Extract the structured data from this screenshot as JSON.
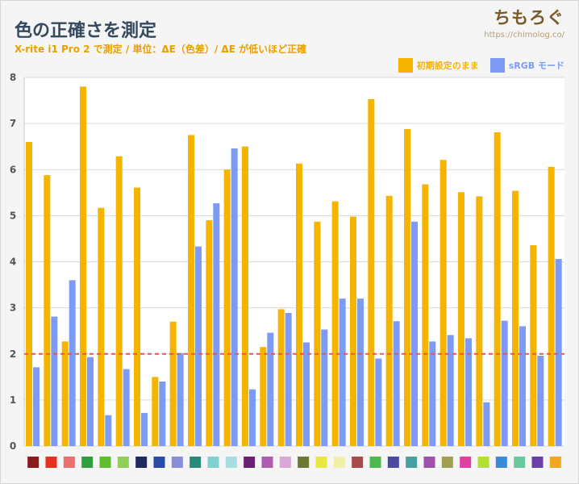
{
  "header": {
    "title": "色の正確さを測定",
    "subtitle": "X-rite i1 Pro 2 で測定 / 単位：ΔE（色差）/ ΔE が低いほど正確"
  },
  "brand": {
    "logo": "ちもろぐ",
    "url": "https://chimolog.co/"
  },
  "colors": {
    "series1": "#f5b400",
    "series2": "#7d9bf5",
    "threshold": "#ef5350",
    "axis_text": "#555555",
    "grid": "#d9d9d9"
  },
  "chart_data": {
    "type": "bar",
    "ylim": [
      0,
      8
    ],
    "yticks": [
      0,
      1,
      2,
      3,
      4,
      5,
      6,
      7,
      8
    ],
    "grid": true,
    "legend_position": "top-right",
    "threshold": 2,
    "categories": [
      "#8b1a1a",
      "#e8301c",
      "#e87070",
      "#2e9e3e",
      "#5fbf2a",
      "#8fcf5a",
      "#1f2a5e",
      "#2a4aa8",
      "#8a8ed6",
      "#2a8a7a",
      "#7fd0d0",
      "#a8dde0",
      "#6b1f78",
      "#b05ab0",
      "#d8a8d8",
      "#6b7a30",
      "#e8e840",
      "#f0f0a8",
      "#a84a4a",
      "#4cba4c",
      "#4a4aa0",
      "#4aa0a0",
      "#a050a8",
      "#a0a050",
      "#e040a0",
      "#b0e030",
      "#3a8ad8",
      "#6ac8a0",
      "#6a40a8",
      "#f0a820"
    ],
    "series": [
      {
        "name": "初期設定のまま",
        "values": [
          6.6,
          5.88,
          2.27,
          7.8,
          5.17,
          6.29,
          5.61,
          1.5,
          2.7,
          6.75,
          4.9,
          6.0,
          6.5,
          2.15,
          2.97,
          6.13,
          4.87,
          5.31,
          4.98,
          7.53,
          5.43,
          6.88,
          5.68,
          6.21,
          5.51,
          5.42,
          6.81,
          5.54,
          4.36,
          6.06
        ]
      },
      {
        "name": "sRGB モード",
        "values": [
          1.71,
          2.81,
          3.6,
          1.93,
          0.67,
          1.67,
          0.72,
          1.4,
          2.02,
          4.33,
          5.27,
          6.46,
          1.23,
          2.46,
          2.89,
          2.25,
          2.53,
          3.2,
          3.2,
          1.9,
          2.71,
          4.87,
          2.27,
          2.41,
          2.34,
          0.95,
          2.72,
          2.6,
          1.96,
          4.06
        ]
      }
    ]
  }
}
